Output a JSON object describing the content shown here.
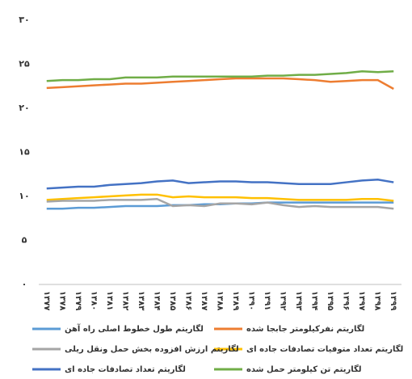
{
  "chart_data": {
    "type": "line",
    "categories": [
      "۱۳۷۷",
      "۱۳۷۸",
      "۱۳۷۹",
      "۱۳۸۰",
      "۱۳۸۱",
      "۱۳۸۲",
      "۱۳۸۳",
      "۱۳۸۴",
      "۱۳۸۵",
      "۱۳۸۶",
      "۱۳۸۷",
      "۱۳۸۸",
      "۱۳۸۹",
      "۱۳۹۰",
      "۱۳۹۱",
      "۱۳۹۲",
      "۱۳۹۳",
      "۱۳۹۴",
      "۱۳۹۵",
      "۱۳۹۶",
      "۱۳۹۷",
      "۱۳۹۸",
      "۱۳۹۹"
    ],
    "ylim": [
      0,
      30
    ],
    "yticks": [
      {
        "value": 0,
        "label": "۰"
      },
      {
        "value": 5,
        "label": "۵"
      },
      {
        "value": 10,
        "label": "۱۰"
      },
      {
        "value": 15,
        "label": "۱۵"
      },
      {
        "value": 20,
        "label": "۲۰"
      },
      {
        "value": 25,
        "label": "۲۵"
      },
      {
        "value": 30,
        "label": "۳۰"
      }
    ],
    "grid": false,
    "series": [
      {
        "name": "لگاریتم نفرکیلومتر جابجا شده",
        "color": "#ed7d31",
        "values": [
          22.3,
          22.4,
          22.5,
          22.6,
          22.7,
          22.8,
          22.8,
          22.9,
          23.0,
          23.1,
          23.2,
          23.3,
          23.4,
          23.4,
          23.4,
          23.4,
          23.3,
          23.2,
          23.0,
          23.1,
          23.2,
          23.2,
          22.2
        ]
      },
      {
        "name": "لگاریتم طول خطوط اصلی راه آهن",
        "color": "#5b9bd5",
        "values": [
          8.6,
          8.6,
          8.7,
          8.7,
          8.8,
          8.9,
          8.9,
          8.9,
          9.0,
          9.0,
          9.1,
          9.1,
          9.2,
          9.2,
          9.3,
          9.3,
          9.3,
          9.3,
          9.3,
          9.3,
          9.3,
          9.3,
          9.3
        ]
      },
      {
        "name": "لگاریتم تعداد متوفیات تصادفات جاده ای",
        "color": "#ffc000",
        "values": [
          9.6,
          9.7,
          9.8,
          9.9,
          10.0,
          10.1,
          10.2,
          10.2,
          9.9,
          10.0,
          9.9,
          9.9,
          9.9,
          9.8,
          9.8,
          9.7,
          9.6,
          9.6,
          9.6,
          9.6,
          9.7,
          9.7,
          9.5
        ]
      },
      {
        "name": "لگاریتم ارزش افزوده بخش حمل ونقل ریلی",
        "color": "#a5a5a5",
        "values": [
          9.4,
          9.5,
          9.5,
          9.5,
          9.6,
          9.6,
          9.6,
          9.7,
          8.9,
          9.0,
          8.9,
          9.2,
          9.2,
          9.1,
          9.3,
          9.0,
          8.8,
          8.9,
          8.8,
          8.8,
          8.8,
          8.8,
          8.6
        ]
      },
      {
        "name": "لگاریتم تن کیلومتر حمل شده",
        "color": "#70ad47",
        "values": [
          23.1,
          23.2,
          23.2,
          23.3,
          23.3,
          23.5,
          23.5,
          23.5,
          23.6,
          23.6,
          23.6,
          23.6,
          23.6,
          23.6,
          23.7,
          23.7,
          23.8,
          23.8,
          23.9,
          24.0,
          24.2,
          24.1,
          24.2
        ]
      },
      {
        "name": "لگاریتم تعداد تصادفات جاده ای",
        "color": "#4472c4",
        "values": [
          10.9,
          11.0,
          11.1,
          11.1,
          11.3,
          11.4,
          11.5,
          11.7,
          11.8,
          11.5,
          11.6,
          11.7,
          11.7,
          11.6,
          11.6,
          11.5,
          11.4,
          11.4,
          11.4,
          11.6,
          11.8,
          11.9,
          11.6
        ]
      }
    ]
  }
}
